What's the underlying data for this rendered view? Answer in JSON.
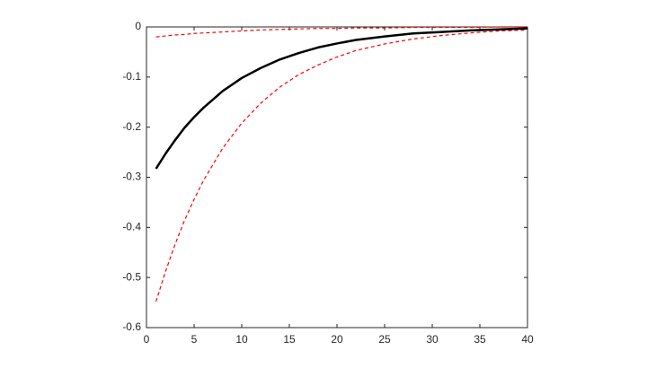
{
  "chart_data": {
    "type": "line",
    "x": [
      1,
      2,
      3,
      4,
      5,
      6,
      8,
      10,
      12,
      14,
      16,
      18,
      20,
      22,
      25,
      28,
      31,
      34,
      37,
      40
    ],
    "series": [
      {
        "color": "#ff0000",
        "dash": true,
        "values": [
          -0.548,
          -0.488,
          -0.434,
          -0.386,
          -0.344,
          -0.306,
          -0.242,
          -0.192,
          -0.152,
          -0.12,
          -0.095,
          -0.076,
          -0.06,
          -0.047,
          -0.034,
          -0.024,
          -0.017,
          -0.012,
          -0.008,
          -0.006
        ]
      },
      {
        "color": "#ff0000",
        "dash": true,
        "values": [
          -0.02,
          -0.018,
          -0.016,
          -0.015,
          -0.013,
          -0.012,
          -0.01,
          -0.008,
          -0.006,
          -0.005,
          -0.004,
          -0.003,
          -0.003,
          -0.002,
          -0.002,
          -0.001,
          -0.001,
          -0.001,
          0,
          0
        ]
      },
      {
        "color": "#000000",
        "dash": false,
        "values": [
          -0.283,
          -0.253,
          -0.226,
          -0.201,
          -0.18,
          -0.161,
          -0.128,
          -0.102,
          -0.082,
          -0.065,
          -0.052,
          -0.041,
          -0.033,
          -0.026,
          -0.019,
          -0.013,
          -0.01,
          -0.007,
          -0.005,
          -0.003
        ]
      }
    ],
    "xlim": [
      0,
      40
    ],
    "xticks": [
      0,
      5,
      10,
      15,
      20,
      25,
      30,
      35,
      40
    ],
    "ylim": [
      -0.6,
      0
    ],
    "yticks": [
      -0.6,
      -0.5,
      -0.4,
      -0.3,
      -0.2,
      -0.1,
      0
    ],
    "grid": false
  }
}
